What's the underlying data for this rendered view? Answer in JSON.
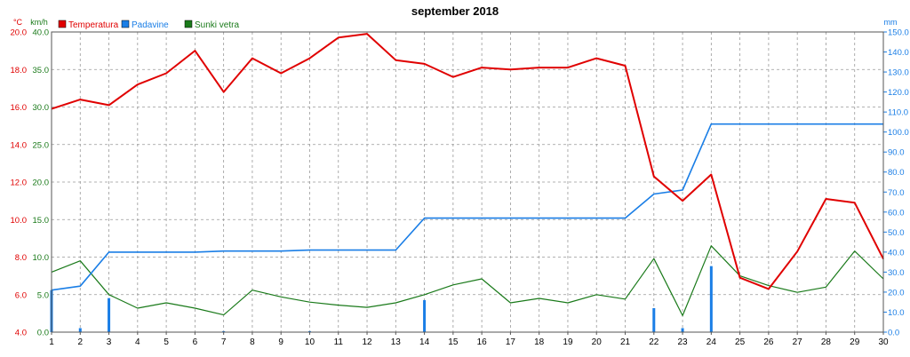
{
  "chart_data": {
    "type": "line",
    "title": "september 2018",
    "unit_temp": "°C",
    "unit_wind": "km/h",
    "unit_rain": "mm",
    "legend": [
      {
        "label": "Temperatura",
        "color": "#e00000"
      },
      {
        "label": "Padavine",
        "color": "#1a7ee6"
      },
      {
        "label": "Sunki vetra",
        "color": "#1a7a1a"
      }
    ],
    "x": [
      1,
      2,
      3,
      4,
      5,
      6,
      7,
      8,
      9,
      10,
      11,
      12,
      13,
      14,
      15,
      16,
      17,
      18,
      19,
      20,
      21,
      22,
      23,
      24,
      25,
      26,
      27,
      28,
      29,
      30
    ],
    "x_ticks": [
      "1",
      "2",
      "3",
      "4",
      "5",
      "6",
      "7",
      "8",
      "9",
      "10",
      "11",
      "12",
      "13",
      "14",
      "15",
      "16",
      "17",
      "18",
      "19",
      "20",
      "21",
      "22",
      "23",
      "24",
      "25",
      "26",
      "27",
      "28",
      "29",
      "30"
    ],
    "temp_axis": {
      "ylim": [
        4,
        20
      ],
      "ticks": [
        "4.0",
        "6.0",
        "8.0",
        "10.0",
        "12.0",
        "14.0",
        "16.0",
        "18.0",
        "20.0"
      ]
    },
    "wind_axis": {
      "ylim": [
        0,
        40
      ],
      "ticks": [
        "0.0",
        "5.0",
        "10.0",
        "15.0",
        "20.0",
        "25.0",
        "30.0",
        "35.0",
        "40.0"
      ]
    },
    "rain_axis": {
      "ylim": [
        0,
        150
      ],
      "ticks": [
        "0.0",
        "10.0",
        "20.0",
        "30.0",
        "40.0",
        "50.0",
        "60.0",
        "70.0",
        "80.0",
        "90.0",
        "100.0",
        "110.0",
        "120.0",
        "130.0",
        "140.0",
        "150.0"
      ]
    },
    "temperature": [
      15.9,
      16.4,
      16.1,
      17.2,
      17.8,
      19.0,
      16.8,
      18.6,
      17.8,
      18.6,
      19.7,
      19.9,
      18.5,
      18.3,
      17.6,
      18.1,
      18.0,
      18.1,
      18.1,
      18.6,
      18.2,
      12.3,
      11.0,
      12.4,
      6.9,
      6.3,
      8.3,
      11.1,
      10.9,
      7.9
    ],
    "wind_gusts": [
      8.0,
      9.5,
      5.0,
      3.2,
      3.9,
      3.2,
      2.3,
      5.6,
      4.7,
      4.0,
      3.6,
      3.3,
      3.9,
      5.0,
      6.3,
      7.1,
      3.9,
      4.5,
      3.9,
      5.0,
      4.4,
      9.8,
      2.2,
      11.5,
      7.5,
      6.2,
      5.3,
      6.0,
      10.8,
      7.1
    ],
    "rain_cumulative": [
      21.0,
      23.0,
      40.0,
      40.0,
      40.0,
      40.0,
      40.5,
      40.5,
      40.5,
      41.0,
      41.0,
      41.0,
      41.0,
      57.0,
      57.0,
      57.0,
      57.0,
      57.0,
      57.0,
      57.0,
      57.0,
      69.0,
      71.0,
      104.0,
      104.0,
      104.0,
      104.0,
      104.0,
      104.0,
      104.0
    ],
    "rain_daily": [
      21.0,
      2.0,
      17.0,
      0,
      0,
      0,
      0.5,
      0,
      0,
      0.5,
      0,
      0,
      0,
      16.0,
      0,
      0,
      0,
      0,
      0,
      0,
      0,
      12.0,
      2.0,
      33.0,
      0,
      0,
      0,
      0,
      0,
      0
    ],
    "grid": true
  }
}
